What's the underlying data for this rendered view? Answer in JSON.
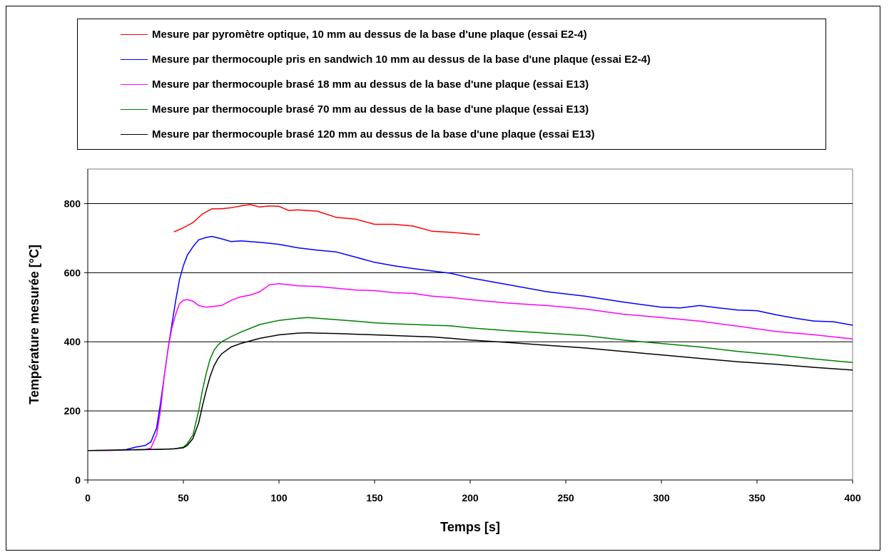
{
  "chart_data": {
    "type": "line",
    "xlabel": "Temps [s]",
    "ylabel": "Température mesurée [°C]",
    "xlim": [
      0,
      400
    ],
    "ylim": [
      0,
      900
    ],
    "xticks": [
      0,
      50,
      100,
      150,
      200,
      250,
      300,
      350,
      400
    ],
    "yticks": [
      0,
      200,
      400,
      600,
      800
    ],
    "grid": "horizontal",
    "legend_position": "top",
    "series": [
      {
        "name": "Mesure par pyromètre optique, 10 mm au dessus de la base d'une plaque (essai E2-4)",
        "color": "#ff0000",
        "x": [
          45,
          50,
          55,
          60,
          65,
          70,
          75,
          80,
          85,
          90,
          95,
          100,
          105,
          110,
          120,
          130,
          140,
          150,
          160,
          170,
          180,
          190,
          200,
          205
        ],
        "y": [
          718,
          730,
          745,
          770,
          785,
          785,
          788,
          793,
          797,
          790,
          793,
          792,
          780,
          782,
          778,
          760,
          755,
          740,
          740,
          735,
          720,
          717,
          712,
          710
        ]
      },
      {
        "name": "Mesure par thermocouple pris en sandwich 10 mm au dessus de la base d'une plaque (essai E2-4)",
        "color": "#0000ff",
        "x": [
          0,
          10,
          20,
          25,
          30,
          33,
          36,
          38,
          40,
          42,
          44,
          46,
          48,
          50,
          52,
          55,
          58,
          62,
          65,
          70,
          75,
          80,
          90,
          100,
          110,
          120,
          130,
          140,
          150,
          160,
          170,
          180,
          190,
          200,
          220,
          240,
          260,
          280,
          300,
          310,
          320,
          330,
          340,
          350,
          360,
          370,
          380,
          390,
          400
        ],
        "y": [
          85,
          85,
          88,
          95,
          100,
          110,
          150,
          220,
          300,
          380,
          450,
          520,
          580,
          620,
          650,
          675,
          695,
          702,
          705,
          698,
          690,
          692,
          688,
          682,
          672,
          665,
          660,
          645,
          630,
          620,
          612,
          605,
          598,
          585,
          565,
          545,
          532,
          515,
          500,
          498,
          505,
          498,
          492,
          490,
          478,
          468,
          460,
          458,
          448
        ]
      },
      {
        "name": "Mesure par thermocouple brasé 18 mm au dessus de la base d'une plaque (essai E13)",
        "color": "#ff00ff",
        "x": [
          0,
          10,
          20,
          30,
          33,
          36,
          38,
          40,
          42,
          44,
          46,
          48,
          50,
          52,
          55,
          58,
          62,
          65,
          70,
          75,
          80,
          85,
          90,
          95,
          100,
          110,
          120,
          130,
          140,
          150,
          160,
          170,
          180,
          190,
          200,
          220,
          240,
          260,
          280,
          300,
          320,
          340,
          360,
          380,
          400
        ],
        "y": [
          85,
          85,
          87,
          88,
          92,
          130,
          200,
          300,
          380,
          440,
          480,
          510,
          520,
          522,
          518,
          505,
          500,
          502,
          505,
          520,
          530,
          535,
          545,
          565,
          568,
          562,
          560,
          555,
          550,
          548,
          542,
          540,
          532,
          528,
          522,
          512,
          505,
          495,
          480,
          470,
          460,
          445,
          430,
          420,
          408
        ]
      },
      {
        "name": "Mesure par thermocouple brasé 70 mm au dessus de la base d'une plaque (essai E13)",
        "color": "#008000",
        "x": [
          0,
          10,
          20,
          30,
          40,
          45,
          50,
          52,
          55,
          58,
          60,
          62,
          64,
          66,
          68,
          70,
          75,
          80,
          90,
          100,
          110,
          115,
          120,
          130,
          140,
          150,
          160,
          170,
          180,
          190,
          200,
          220,
          240,
          260,
          280,
          300,
          320,
          340,
          360,
          380,
          400
        ],
        "y": [
          85,
          86,
          87,
          88,
          89,
          90,
          95,
          105,
          130,
          200,
          260,
          310,
          350,
          375,
          390,
          400,
          415,
          428,
          450,
          462,
          468,
          470,
          468,
          464,
          460,
          455,
          452,
          450,
          448,
          446,
          440,
          432,
          425,
          418,
          405,
          395,
          385,
          372,
          362,
          350,
          340
        ]
      },
      {
        "name": "Mesure par thermocouple brasé 120 mm au dessus de la base d'une plaque (essai E13)",
        "color": "#000000",
        "x": [
          0,
          10,
          20,
          30,
          40,
          45,
          50,
          52,
          55,
          58,
          60,
          62,
          64,
          66,
          68,
          70,
          75,
          80,
          90,
          100,
          110,
          115,
          120,
          130,
          140,
          150,
          160,
          170,
          180,
          190,
          200,
          220,
          240,
          260,
          280,
          300,
          320,
          340,
          360,
          380,
          400
        ],
        "y": [
          85,
          86,
          87,
          88,
          89,
          90,
          93,
          100,
          120,
          165,
          215,
          260,
          300,
          330,
          350,
          365,
          385,
          395,
          410,
          420,
          425,
          426,
          425,
          424,
          422,
          420,
          418,
          416,
          414,
          410,
          405,
          398,
          390,
          382,
          372,
          362,
          352,
          342,
          335,
          326,
          318
        ]
      }
    ]
  }
}
